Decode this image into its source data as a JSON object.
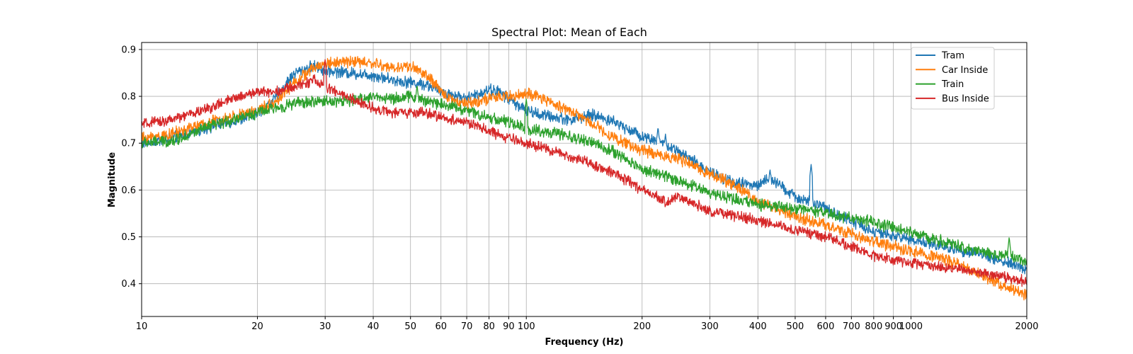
{
  "chart_data": {
    "type": "line",
    "title": "Spectral Plot: Mean of Each",
    "xlabel": "Frequency (Hz)",
    "ylabel": "Magnitude",
    "x_scale": "log",
    "xlim": [
      10,
      2000
    ],
    "ylim": [
      0.33,
      0.915
    ],
    "grid": true,
    "legend_position": "top-right",
    "x_ticks": [
      10,
      20,
      30,
      40,
      50,
      60,
      70,
      80,
      90,
      100,
      200,
      300,
      400,
      500,
      600,
      700,
      800,
      900,
      1000,
      2000
    ],
    "x_tick_labels": [
      "10",
      "20",
      "30",
      "40",
      "50",
      "60",
      "70",
      "80",
      "90",
      "100",
      "200",
      "300",
      "400",
      "500",
      "600",
      "700",
      "800",
      "900",
      "1000",
      "2000"
    ],
    "y_ticks": [
      0.4,
      0.5,
      0.6,
      0.7,
      0.8,
      0.9
    ],
    "y_tick_labels": [
      "0.4",
      "0.5",
      "0.6",
      "0.7",
      "0.8",
      "0.9"
    ],
    "series": [
      {
        "name": "Tram",
        "color": "#1f77b4",
        "noise": 0.01,
        "points": [
          [
            10,
            0.7
          ],
          [
            12,
            0.71
          ],
          [
            15,
            0.735
          ],
          [
            18,
            0.75
          ],
          [
            20,
            0.765
          ],
          [
            22,
            0.79
          ],
          [
            25,
            0.85
          ],
          [
            28,
            0.865
          ],
          [
            30,
            0.855
          ],
          [
            35,
            0.85
          ],
          [
            40,
            0.845
          ],
          [
            45,
            0.835
          ],
          [
            50,
            0.83
          ],
          [
            55,
            0.825
          ],
          [
            60,
            0.81
          ],
          [
            70,
            0.795
          ],
          [
            80,
            0.815
          ],
          [
            85,
            0.81
          ],
          [
            90,
            0.795
          ],
          [
            100,
            0.77
          ],
          [
            110,
            0.76
          ],
          [
            130,
            0.75
          ],
          [
            150,
            0.76
          ],
          [
            170,
            0.745
          ],
          [
            200,
            0.715
          ],
          [
            220,
            0.705
          ],
          [
            250,
            0.68
          ],
          [
            300,
            0.64
          ],
          [
            350,
            0.615
          ],
          [
            400,
            0.61
          ],
          [
            430,
            0.625
          ],
          [
            500,
            0.585
          ],
          [
            550,
            0.575
          ],
          [
            600,
            0.56
          ],
          [
            700,
            0.535
          ],
          [
            800,
            0.51
          ],
          [
            1000,
            0.495
          ],
          [
            1200,
            0.48
          ],
          [
            1500,
            0.465
          ],
          [
            2000,
            0.43
          ]
        ],
        "spikes": [
          [
            220,
            0.735
          ],
          [
            230,
            0.72
          ],
          [
            550,
            0.655
          ],
          [
            430,
            0.645
          ]
        ]
      },
      {
        "name": "Car Inside",
        "color": "#ff7f0e",
        "noise": 0.01,
        "points": [
          [
            10,
            0.71
          ],
          [
            12,
            0.72
          ],
          [
            15,
            0.745
          ],
          [
            18,
            0.76
          ],
          [
            20,
            0.77
          ],
          [
            22,
            0.785
          ],
          [
            25,
            0.83
          ],
          [
            28,
            0.86
          ],
          [
            30,
            0.87
          ],
          [
            35,
            0.875
          ],
          [
            40,
            0.87
          ],
          [
            45,
            0.86
          ],
          [
            50,
            0.865
          ],
          [
            55,
            0.845
          ],
          [
            60,
            0.81
          ],
          [
            65,
            0.79
          ],
          [
            70,
            0.785
          ],
          [
            80,
            0.795
          ],
          [
            90,
            0.8
          ],
          [
            100,
            0.805
          ],
          [
            110,
            0.795
          ],
          [
            130,
            0.77
          ],
          [
            150,
            0.74
          ],
          [
            170,
            0.71
          ],
          [
            200,
            0.685
          ],
          [
            250,
            0.665
          ],
          [
            300,
            0.635
          ],
          [
            350,
            0.61
          ],
          [
            400,
            0.575
          ],
          [
            500,
            0.545
          ],
          [
            600,
            0.525
          ],
          [
            700,
            0.505
          ],
          [
            800,
            0.49
          ],
          [
            1000,
            0.47
          ],
          [
            1200,
            0.455
          ],
          [
            1500,
            0.42
          ],
          [
            2000,
            0.375
          ]
        ],
        "spikes": []
      },
      {
        "name": "Train",
        "color": "#2ca02c",
        "noise": 0.01,
        "points": [
          [
            10,
            0.7
          ],
          [
            12,
            0.705
          ],
          [
            15,
            0.735
          ],
          [
            18,
            0.755
          ],
          [
            20,
            0.765
          ],
          [
            25,
            0.785
          ],
          [
            30,
            0.79
          ],
          [
            35,
            0.79
          ],
          [
            40,
            0.8
          ],
          [
            45,
            0.795
          ],
          [
            50,
            0.8
          ],
          [
            55,
            0.79
          ],
          [
            60,
            0.785
          ],
          [
            70,
            0.77
          ],
          [
            80,
            0.755
          ],
          [
            90,
            0.745
          ],
          [
            100,
            0.73
          ],
          [
            120,
            0.72
          ],
          [
            150,
            0.7
          ],
          [
            170,
            0.68
          ],
          [
            200,
            0.645
          ],
          [
            250,
            0.62
          ],
          [
            300,
            0.595
          ],
          [
            350,
            0.58
          ],
          [
            400,
            0.57
          ],
          [
            500,
            0.56
          ],
          [
            600,
            0.55
          ],
          [
            700,
            0.54
          ],
          [
            800,
            0.53
          ],
          [
            1000,
            0.51
          ],
          [
            1200,
            0.49
          ],
          [
            1500,
            0.47
          ],
          [
            2000,
            0.45
          ]
        ],
        "spikes": [
          [
            52,
            0.825
          ],
          [
            100,
            0.795
          ],
          [
            1800,
            0.5
          ]
        ]
      },
      {
        "name": "Bus Inside",
        "color": "#d62728",
        "noise": 0.009,
        "points": [
          [
            10,
            0.74
          ],
          [
            12,
            0.75
          ],
          [
            15,
            0.775
          ],
          [
            18,
            0.8
          ],
          [
            20,
            0.81
          ],
          [
            22,
            0.81
          ],
          [
            25,
            0.82
          ],
          [
            28,
            0.835
          ],
          [
            30,
            0.82
          ],
          [
            35,
            0.795
          ],
          [
            40,
            0.775
          ],
          [
            45,
            0.765
          ],
          [
            50,
            0.765
          ],
          [
            55,
            0.765
          ],
          [
            60,
            0.755
          ],
          [
            70,
            0.745
          ],
          [
            80,
            0.725
          ],
          [
            90,
            0.71
          ],
          [
            100,
            0.7
          ],
          [
            120,
            0.68
          ],
          [
            150,
            0.655
          ],
          [
            170,
            0.635
          ],
          [
            200,
            0.6
          ],
          [
            230,
            0.575
          ],
          [
            250,
            0.585
          ],
          [
            300,
            0.555
          ],
          [
            350,
            0.545
          ],
          [
            400,
            0.535
          ],
          [
            500,
            0.515
          ],
          [
            600,
            0.5
          ],
          [
            700,
            0.48
          ],
          [
            800,
            0.46
          ],
          [
            1000,
            0.445
          ],
          [
            1200,
            0.435
          ],
          [
            1500,
            0.425
          ],
          [
            2000,
            0.405
          ]
        ],
        "spikes": [
          [
            30,
            0.88
          ]
        ]
      }
    ]
  }
}
